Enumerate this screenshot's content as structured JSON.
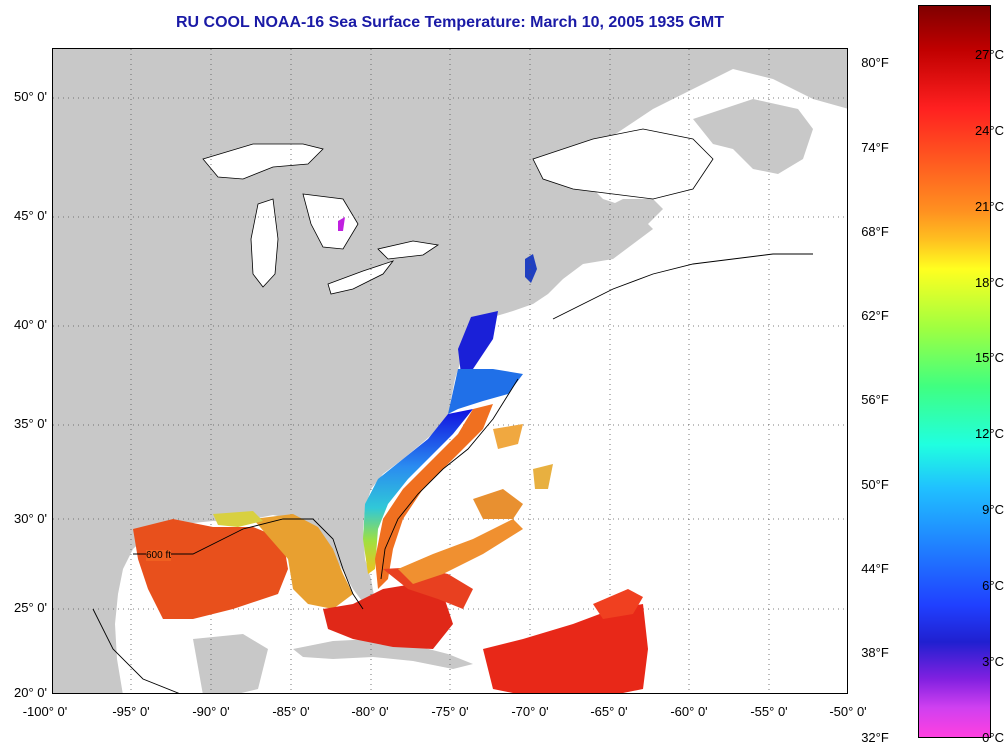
{
  "title": "RU COOL  NOAA-16  Sea Surface Temperature:  March 10, 2005 1935 GMT",
  "map": {
    "lat_labels": [
      "50° 0'",
      "45° 0'",
      "40° 0'",
      "35° 0'",
      "30° 0'",
      "25° 0'",
      "20° 0'"
    ],
    "lon_labels": [
      "-100° 0'",
      "-95° 0'",
      "-90° 0'",
      "-85° 0'",
      "-80° 0'",
      "-75° 0'",
      "-70° 0'",
      "-65° 0'",
      "-60° 0'",
      "-55° 0'",
      "-50° 0'"
    ],
    "contour_label": "600 ft",
    "colors": {
      "land": "#c8c8c8",
      "ocean_no_data": "#ffffff",
      "grid": "#555555"
    }
  },
  "colorbar": {
    "fahrenheit": [
      "80°F",
      "74°F",
      "68°F",
      "62°F",
      "56°F",
      "50°F",
      "44°F",
      "38°F",
      "32°F"
    ],
    "celsius": [
      "27°C",
      "24°C",
      "21°C",
      "18°C",
      "15°C",
      "12°C",
      "9°C",
      "6°C",
      "3°C",
      "0°C"
    ]
  }
}
